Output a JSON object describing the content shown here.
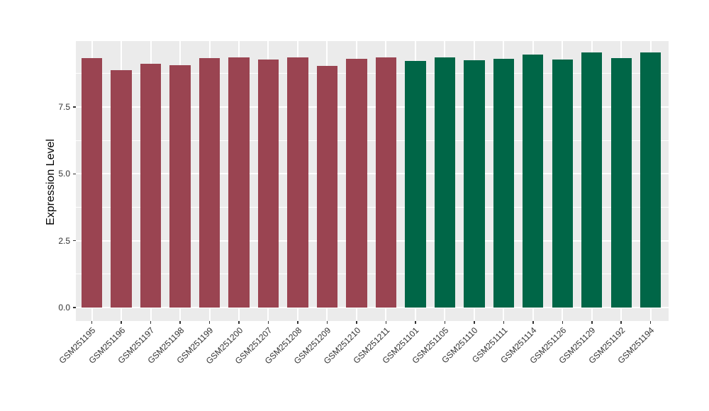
{
  "figure": {
    "background": "#FFFFFF"
  },
  "chart_data": {
    "type": "bar",
    "title": "",
    "xlabel": "",
    "ylabel": "Expression Level",
    "ylim": [
      0,
      9.97
    ],
    "ytick_labels": [
      "0.0",
      "2.5",
      "5.0",
      "7.5"
    ],
    "ytick_values": [
      0,
      2.5,
      5,
      7.5
    ],
    "minor_ytick_values": [
      1.25,
      3.75,
      6.25,
      8.75
    ],
    "grid": "white major and minor horizontal gridlines, white major vertical gridlines at bar centers",
    "legend_position": "none",
    "panel_background": "#EBEBEB",
    "gridline_color": "#FFFFFF",
    "axis_text_color": "#333333",
    "axis_title_color": "#000000",
    "categories": [
      "GSM251195",
      "GSM251196",
      "GSM251197",
      "GSM251198",
      "GSM251199",
      "GSM251200",
      "GSM251207",
      "GSM251208",
      "GSM251209",
      "GSM251210",
      "GSM251211",
      "GSM251101",
      "GSM251105",
      "GSM251110",
      "GSM251111",
      "GSM251114",
      "GSM251126",
      "GSM251129",
      "GSM251192",
      "GSM251194"
    ],
    "values": [
      9.32,
      8.89,
      9.13,
      9.08,
      9.33,
      9.37,
      9.27,
      9.36,
      9.03,
      9.3,
      9.36,
      9.24,
      9.37,
      9.25,
      9.3,
      9.47,
      9.29,
      9.54,
      9.34,
      9.54
    ],
    "groups": [
      "A",
      "A",
      "A",
      "A",
      "A",
      "A",
      "A",
      "A",
      "A",
      "A",
      "A",
      "B",
      "B",
      "B",
      "B",
      "B",
      "B",
      "B",
      "B",
      "B"
    ],
    "group_colors": {
      "A": "#9A4451",
      "B": "#006647"
    },
    "x_label_angle_deg": 45
  }
}
